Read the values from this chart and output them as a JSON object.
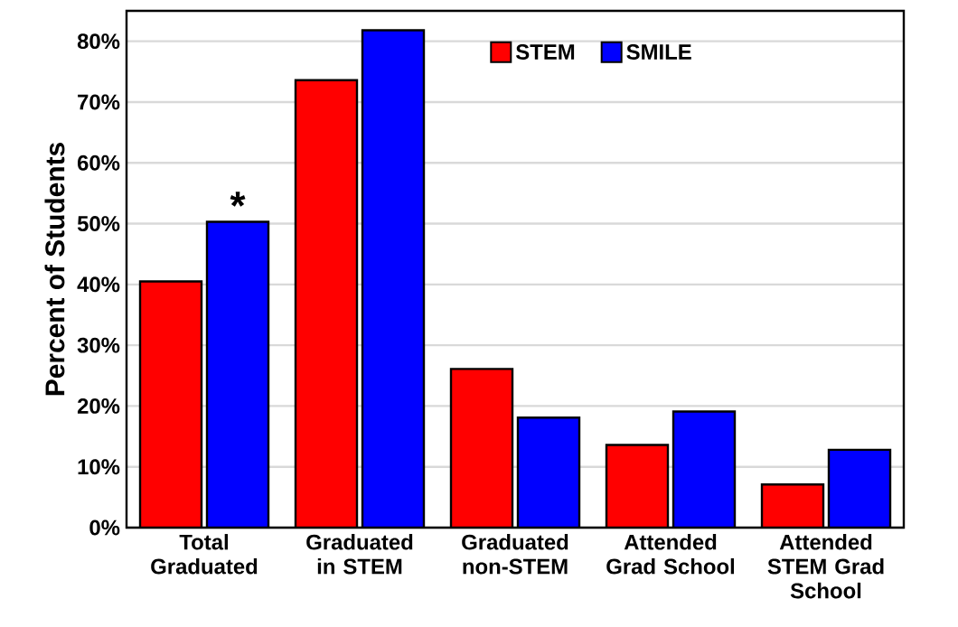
{
  "chart_data": {
    "type": "bar",
    "ylabel": "Percent of Students",
    "categories": [
      "Total Graduated",
      "Graduated in STEM",
      "Graduated non-STEM",
      "Attended Grad School",
      "Attended STEM Grad School"
    ],
    "series": [
      {
        "name": "STEM",
        "color": "#ff0000",
        "values": [
          40.5,
          73.6,
          26.1,
          13.6,
          7.1
        ]
      },
      {
        "name": "SMILE",
        "color": "#0000ff",
        "values": [
          50.3,
          81.8,
          18.1,
          19.1,
          12.8
        ],
        "value_labels": [
          "*",
          null,
          null,
          null,
          null
        ]
      }
    ],
    "ylim": [
      0,
      85
    ],
    "yticks": [
      {
        "value": 0,
        "label": "0%"
      },
      {
        "value": 10,
        "label": "10%"
      },
      {
        "value": 20,
        "label": "20%"
      },
      {
        "value": 30,
        "label": "30%"
      },
      {
        "value": 40,
        "label": "40%"
      },
      {
        "value": 50,
        "label": "50%"
      },
      {
        "value": 60,
        "label": "60%"
      },
      {
        "value": 70,
        "label": "70%"
      },
      {
        "value": 80,
        "label": "80%"
      }
    ],
    "grid": "y",
    "legend": "top"
  }
}
